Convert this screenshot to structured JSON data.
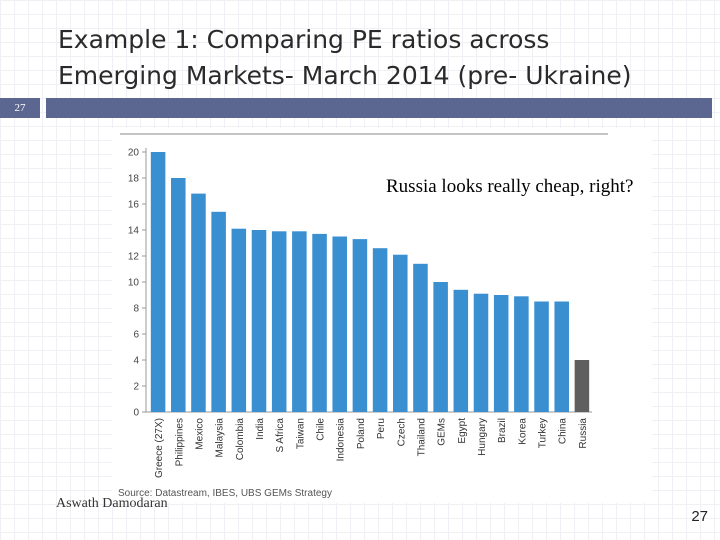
{
  "slide": {
    "title_line1": "Example 1: Comparing PE ratios across",
    "title_line2": "Emerging Markets- March 2014 (pre- Ukraine)",
    "slide_number_small": "27",
    "annotation": "Russia looks really cheap, right?",
    "author": "Aswath Damodaran",
    "page_number": "27"
  },
  "chart_data": {
    "type": "bar",
    "categories": [
      "Greece (27X)",
      "Philippines",
      "Mexico",
      "Malaysia",
      "Colombia",
      "India",
      "S Africa",
      "Taiwan",
      "Chile",
      "Indonesia",
      "Poland",
      "Peru",
      "Czech",
      "Thailand",
      "GEMs",
      "Egypt",
      "Hungary",
      "Brazil",
      "Korea",
      "Turkey",
      "China",
      "Russia"
    ],
    "values": [
      20,
      18,
      16.8,
      15.4,
      14.1,
      14,
      13.9,
      13.9,
      13.7,
      13.5,
      13.3,
      12.6,
      12.1,
      11.4,
      10,
      9.4,
      9.1,
      9,
      8.9,
      8.5,
      8.5,
      4
    ],
    "highlight_category": "Russia",
    "ylim": [
      0,
      20
    ],
    "yticks": [
      0,
      2,
      4,
      6,
      8,
      10,
      12,
      14,
      16,
      18,
      20
    ],
    "source": "Source: Datastream, IBES, UBS GEMs Strategy",
    "colors": {
      "bar": "#3a8fd0",
      "highlight": "#5f5f5f",
      "axis": "#999999"
    }
  }
}
